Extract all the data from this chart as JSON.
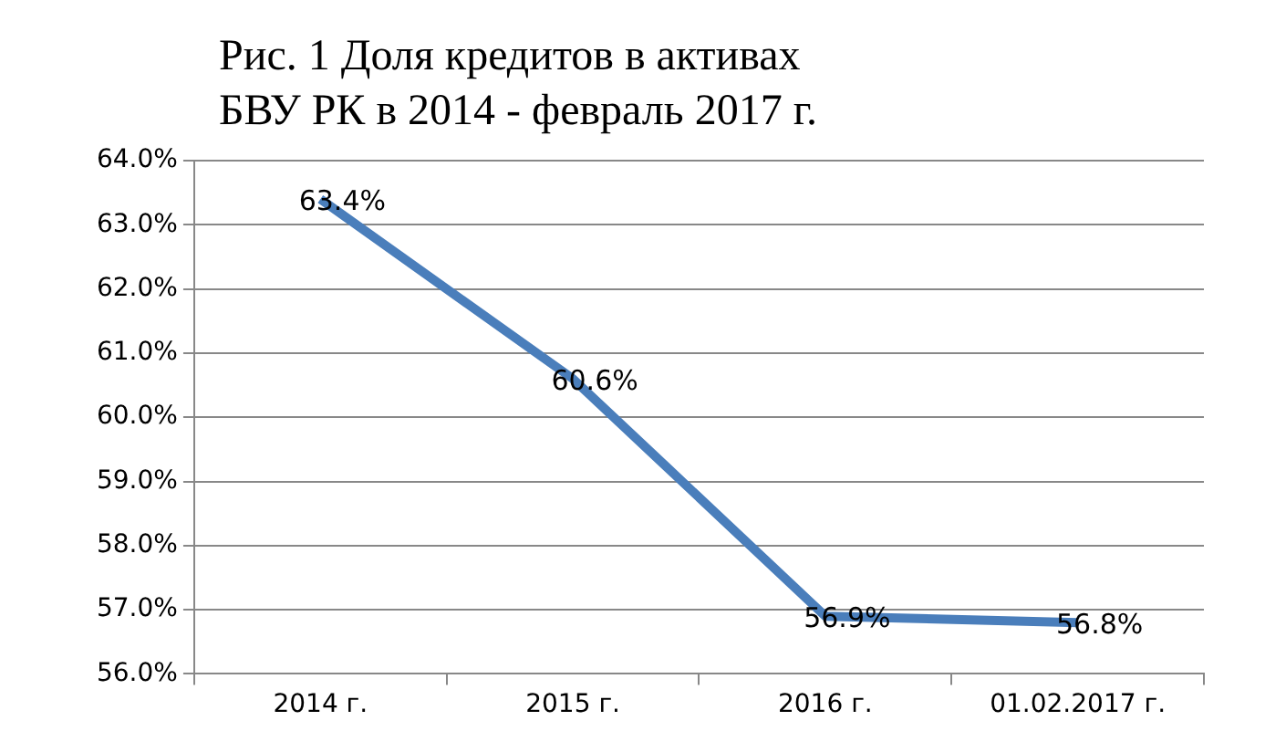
{
  "chart_data": {
    "type": "line",
    "title": "Рис. 1 Доля кредитов в активах БВУ РК в 2014 - февраль 2017 г.",
    "categories": [
      "2014 г.",
      "2015 г.",
      "2016 г.",
      "01.02.2017 г."
    ],
    "series": [
      {
        "color": "#4a7ebb",
        "values": [
          63.4,
          60.6,
          56.9,
          56.8
        ],
        "value_labels": [
          "63.4%",
          "60.6%",
          "56.9%",
          "56.8%"
        ]
      }
    ],
    "ylim": [
      56,
      64
    ],
    "yticks": [
      {
        "value": 56,
        "label": "56.0%"
      },
      {
        "value": 57,
        "label": "57.0%"
      },
      {
        "value": 58,
        "label": "58.0%"
      },
      {
        "value": 59,
        "label": "59.0%"
      },
      {
        "value": 60,
        "label": "60.0%"
      },
      {
        "value": 61,
        "label": "61.0%"
      },
      {
        "value": 62,
        "label": "62.0%"
      },
      {
        "value": 63,
        "label": "63.0%"
      },
      {
        "value": 64,
        "label": "64.0%"
      }
    ],
    "grid": "y",
    "legend": false,
    "marker": "none",
    "line_style": "solid"
  }
}
